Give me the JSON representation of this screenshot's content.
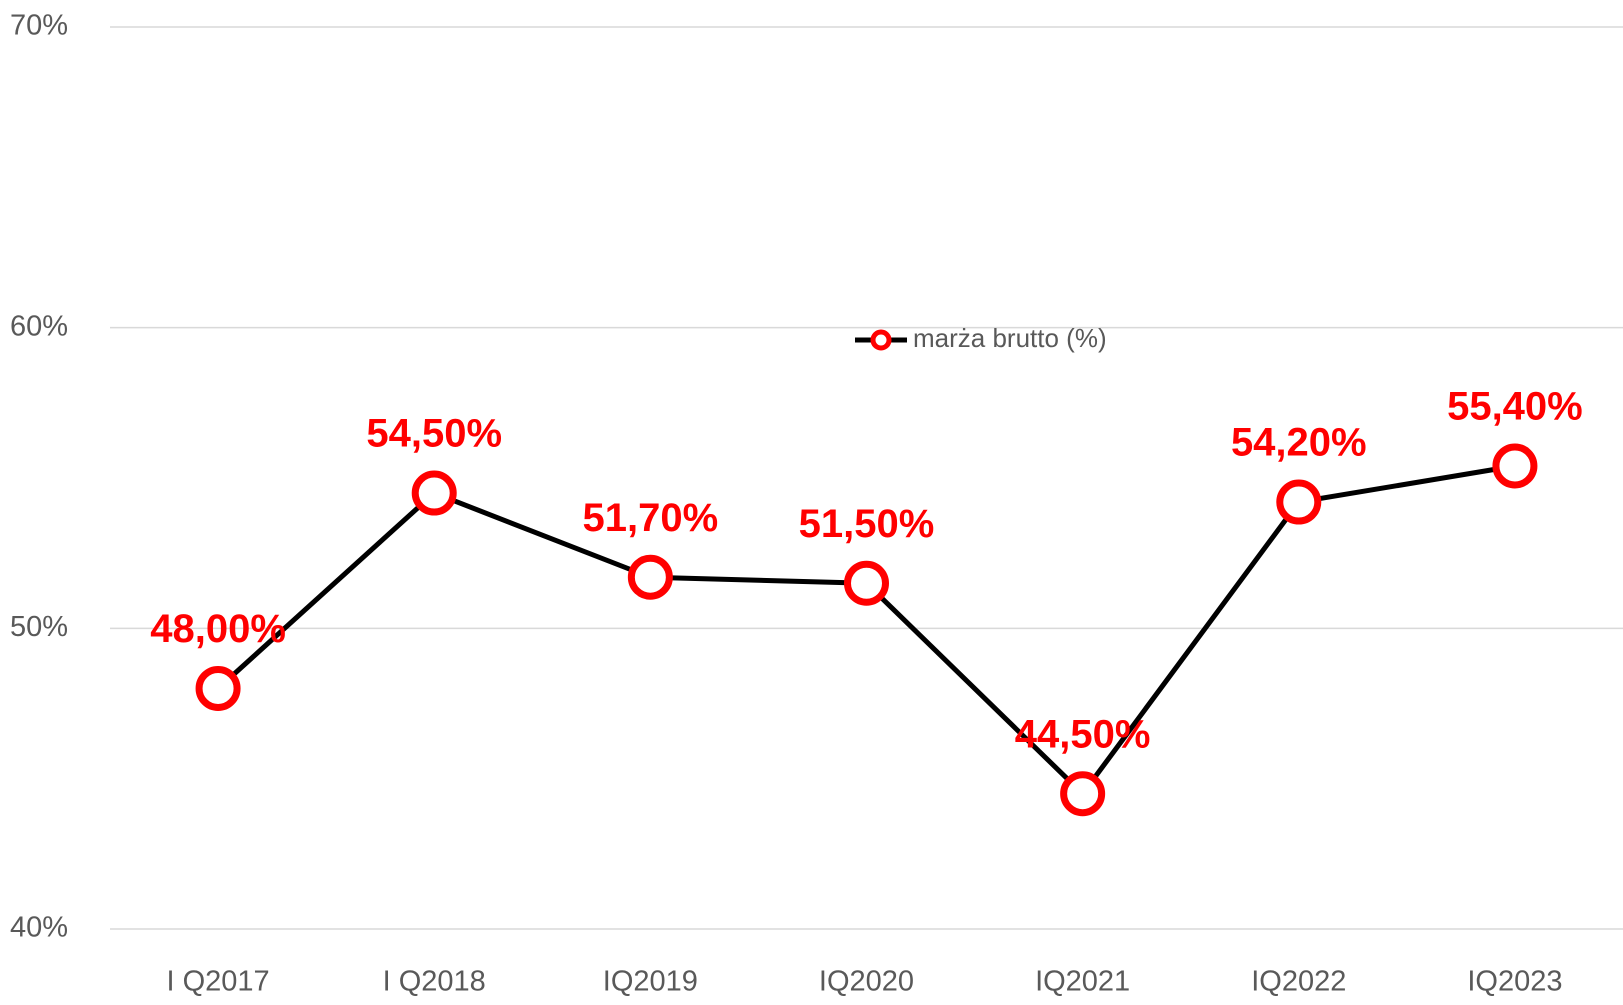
{
  "chart_data": {
    "type": "line",
    "categories": [
      "I Q2017",
      "I Q2018",
      "IQ2019",
      "IQ2020",
      "IQ2021",
      "IQ2022",
      "IQ2023"
    ],
    "series": [
      {
        "name": "marża brutto (%)",
        "color": "#000000",
        "marker_color": "#ff0000",
        "values": [
          48.0,
          54.5,
          51.7,
          51.5,
          44.5,
          54.2,
          55.4
        ],
        "value_labels": [
          "48,00%",
          "54,50%",
          "51,70%",
          "51,50%",
          "44,50%",
          "54,20%",
          "55,40%"
        ]
      }
    ],
    "ylim": [
      40,
      70
    ],
    "yticks": [
      {
        "value": 40,
        "label": "40%"
      },
      {
        "value": 50,
        "label": "50%"
      },
      {
        "value": 60,
        "label": "60%"
      },
      {
        "value": 70,
        "label": "70%"
      }
    ],
    "grid": true
  }
}
